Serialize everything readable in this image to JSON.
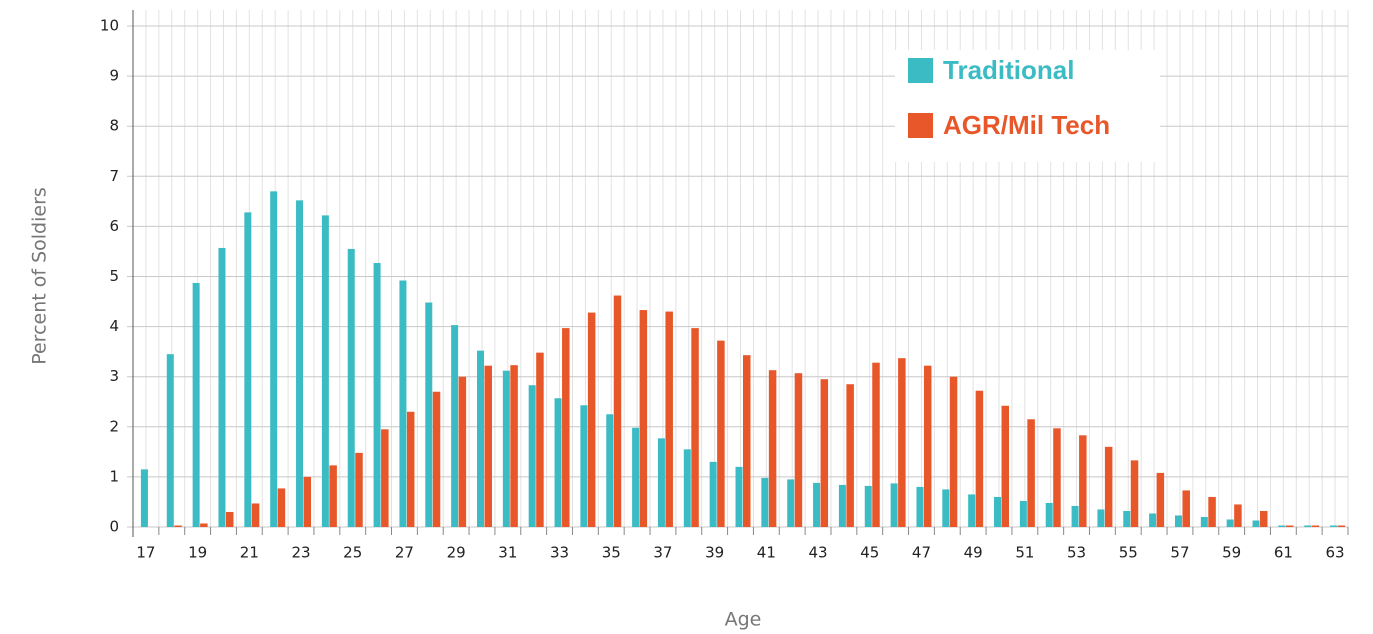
{
  "chart_data": {
    "type": "bar",
    "x_label": "Age",
    "y_label": "Percent of Soldiers",
    "categories": [
      "17",
      null,
      "19",
      null,
      "21",
      null,
      "23",
      null,
      "25",
      null,
      "27",
      null,
      "29",
      null,
      "31",
      null,
      "33",
      null,
      "35",
      null,
      "37",
      null,
      "39",
      null,
      "41",
      null,
      "43",
      null,
      "45",
      null,
      "47",
      null,
      "49",
      null,
      "51",
      null,
      "53",
      null,
      "55",
      null,
      "57",
      null,
      "59",
      null,
      "61",
      null,
      "63"
    ],
    "series": [
      {
        "name": "Traditional",
        "color": "#3bbcc4",
        "values": [
          1.15,
          3.45,
          4.87,
          5.57,
          6.28,
          6.7,
          6.52,
          6.22,
          5.55,
          5.27,
          4.92,
          4.48,
          4.03,
          3.52,
          3.12,
          2.83,
          2.57,
          2.43,
          2.25,
          1.98,
          1.77,
          1.55,
          1.3,
          1.2,
          0.98,
          0.95,
          0.88,
          0.84,
          0.82,
          0.87,
          0.8,
          0.75,
          0.65,
          0.6,
          0.52,
          0.48,
          0.42,
          0.35,
          0.32,
          0.27,
          0.23,
          0.2,
          0.15,
          0.13,
          0.03,
          0.03,
          0.03
        ]
      },
      {
        "name": "AGR/Mil Tech",
        "color": "#e8572a",
        "values": [
          0,
          0.03,
          0.07,
          0.3,
          0.47,
          0.77,
          1.0,
          1.23,
          1.48,
          1.95,
          2.3,
          2.7,
          3.0,
          3.22,
          3.23,
          3.48,
          3.97,
          4.28,
          4.62,
          4.33,
          4.3,
          3.97,
          3.72,
          3.43,
          3.13,
          3.07,
          2.95,
          2.85,
          3.28,
          3.37,
          3.22,
          3.0,
          2.72,
          2.42,
          2.15,
          1.97,
          1.83,
          1.6,
          1.33,
          1.08,
          0.73,
          0.6,
          0.45,
          0.32,
          0.03,
          0.03,
          0.03
        ]
      }
    ],
    "ylim": [
      0,
      10
    ],
    "yticks": [
      0,
      1,
      2,
      3,
      4,
      5,
      6,
      7,
      8,
      9,
      10
    ],
    "grid": true,
    "legend": "top-right"
  }
}
